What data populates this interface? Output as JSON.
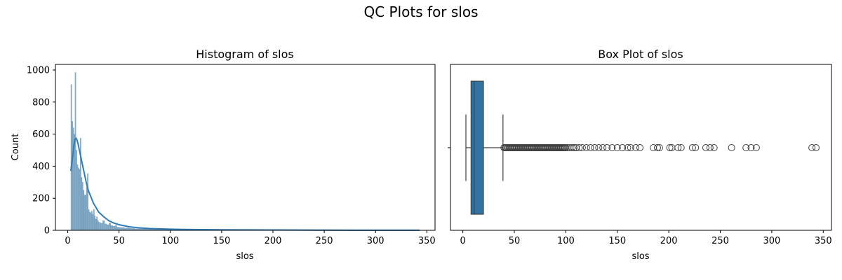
{
  "figure": {
    "title": "QC Plots for slos"
  },
  "chart_data": [
    {
      "type": "bar",
      "title": "Histogram of slos",
      "xlabel": "slos",
      "ylabel": "Count",
      "xlim": [
        -12,
        358
      ],
      "ylim": [
        0,
        1000
      ],
      "xticks": [
        0,
        50,
        100,
        150,
        200,
        250,
        300,
        350
      ],
      "yticks": [
        0,
        200,
        400,
        600,
        800,
        1000
      ],
      "bar_color": "#7aa3c1",
      "bar_edge_color": "#2f6f9f",
      "kde_color": "#2f7cb7",
      "bins": {
        "x": [
          3,
          4,
          5,
          6,
          7,
          8,
          9,
          10,
          11,
          12,
          13,
          14,
          15,
          16,
          17,
          18,
          19,
          20,
          21,
          22,
          23,
          24,
          25,
          26,
          27,
          28,
          29,
          30,
          32,
          34,
          36,
          38,
          40,
          42,
          44,
          46,
          48,
          50,
          55,
          60,
          65,
          70,
          75,
          80,
          85,
          90,
          95,
          100,
          105,
          110,
          115,
          120,
          130,
          140,
          150,
          160,
          180,
          200,
          220,
          240,
          260,
          280,
          300,
          340
        ],
        "counts": [
          910,
          680,
          640,
          600,
          985,
          500,
          410,
          390,
          380,
          575,
          330,
          300,
          250,
          220,
          220,
          270,
          355,
          130,
          115,
          110,
          120,
          100,
          130,
          90,
          70,
          85,
          60,
          50,
          45,
          60,
          40,
          35,
          45,
          30,
          25,
          30,
          20,
          18,
          15,
          12,
          10,
          9,
          8,
          7,
          6,
          5,
          4,
          4,
          3,
          3,
          2,
          2,
          2,
          2,
          1,
          1,
          1,
          1,
          1,
          0,
          1,
          0,
          0,
          1
        ]
      },
      "kde": {
        "x": [
          3,
          5,
          6,
          7,
          8,
          9,
          10,
          12,
          14,
          16,
          18,
          20,
          25,
          30,
          35,
          40,
          45,
          50,
          60,
          70,
          80,
          100,
          120,
          150,
          200,
          250,
          300,
          343
        ],
        "y": [
          370,
          470,
          530,
          565,
          575,
          565,
          540,
          480,
          420,
          360,
          300,
          250,
          170,
          115,
          85,
          60,
          45,
          35,
          22,
          15,
          11,
          7,
          5,
          3,
          2,
          1,
          0.5,
          0.3
        ]
      }
    },
    {
      "type": "box",
      "title": "Box Plot of slos",
      "xlabel": "slos",
      "xlim": [
        -12,
        358
      ],
      "xticks": [
        0,
        50,
        100,
        150,
        200,
        250,
        300,
        350
      ],
      "box_color": "#3274a1",
      "stats": {
        "whisker_low": 3,
        "q1": 8,
        "median": 11,
        "q3": 20,
        "whisker_high": 39
      },
      "outliers": [
        40,
        41,
        42,
        43,
        44,
        45,
        46,
        47,
        48,
        49,
        50,
        51,
        52,
        53,
        54,
        55,
        56,
        57,
        58,
        59,
        60,
        61,
        62,
        63,
        64,
        65,
        66,
        67,
        68,
        69,
        70,
        71,
        72,
        73,
        74,
        75,
        76,
        77,
        78,
        79,
        80,
        81,
        82,
        83,
        84,
        85,
        86,
        87,
        88,
        89,
        90,
        91,
        92,
        93,
        94,
        95,
        96,
        97,
        98,
        99,
        100,
        102,
        104,
        106,
        108,
        110,
        113,
        116,
        120,
        124,
        128,
        132,
        136,
        140,
        145,
        150,
        155,
        160,
        163,
        168,
        172,
        185,
        189,
        191,
        201,
        203,
        209,
        212,
        223,
        226,
        236,
        240,
        244,
        261,
        275,
        280,
        285,
        339,
        343
      ]
    }
  ]
}
